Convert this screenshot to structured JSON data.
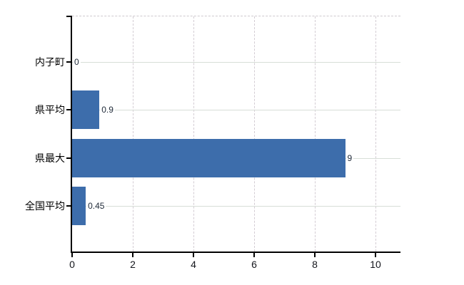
{
  "chart_data": {
    "type": "bar",
    "orientation": "horizontal",
    "categories": [
      "内子町",
      "県平均",
      "県最大",
      "全国平均"
    ],
    "values": [
      0,
      0.9,
      9,
      0.45
    ],
    "value_labels": [
      "0",
      "0.9",
      "9",
      "0.45"
    ],
    "x_ticks": [
      0,
      2,
      4,
      6,
      8,
      10
    ],
    "x_tick_labels": [
      "0",
      "2",
      "4",
      "6",
      "8",
      "10"
    ],
    "xlim": [
      0,
      10.8
    ],
    "grid": true,
    "legend": false,
    "bar_color": "#3d6dab",
    "colors": {
      "axis": "#000000",
      "horizontal_gridline": "#d7ded7",
      "vertical_gridline": "#d3ccd3",
      "top_border": "#cfc9cf",
      "value_label_text": "#1f2a38",
      "tick_label_text": "#14161c",
      "category_label_text": "#000000",
      "background": "#ffffff"
    }
  }
}
